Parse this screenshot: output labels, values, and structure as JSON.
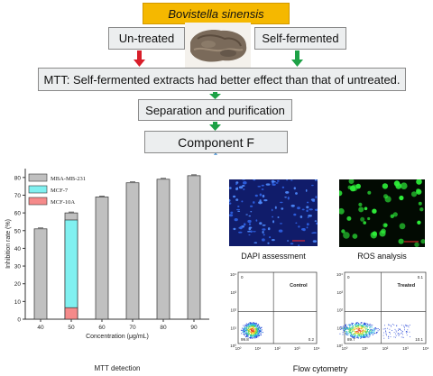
{
  "flow": {
    "title": "Bovistella sinensis",
    "untreated": "Un-treated",
    "self_fermented": "Self-fermented",
    "mtt": "MTT: Self-fermented extracts had better effect than that of untreated.",
    "separation": "Separation and purification",
    "component": "Component F"
  },
  "colors": {
    "title_bg": "#f5b800",
    "box_bg": "#eceeef",
    "red_arrow": "#d81e2a",
    "green_arrow": "#1da146",
    "bracket": "#5b9bd5",
    "bar_grey": "#c0c0c0",
    "bar_cyan": "#80f0f0",
    "bar_pink": "#f58a8a"
  },
  "chart_data": {
    "type": "bar",
    "categories": [
      "40",
      "50",
      "60",
      "70",
      "80",
      "90"
    ],
    "series": [
      {
        "name": "MBA-MB-231",
        "values": [
          51,
          60,
          69,
          77,
          79,
          81
        ]
      },
      {
        "name": "MCF-7",
        "values": [
          null,
          56,
          null,
          null,
          null,
          null
        ]
      },
      {
        "name": "MCF-10A",
        "values": [
          null,
          6.5,
          null,
          null,
          null,
          null
        ]
      }
    ],
    "yticks": [
      "0",
      "10",
      "20",
      "30",
      "40",
      "50",
      "60",
      "70",
      "80"
    ],
    "xlabel": "Concentration (μg/mL)",
    "ylabel": "Inhibition rate (%)",
    "ylim": [
      0,
      85
    ],
    "legend_position": "top-left",
    "caption": "MTT detection"
  },
  "panels": {
    "dapi": "DAPI assessment",
    "ros": "ROS analysis",
    "flow": "Flow cytometry"
  },
  "flow_plots": [
    {
      "label": "Control",
      "q1": "0",
      "q2": "",
      "q3": "99.8",
      "q4": "0.2"
    },
    {
      "label": "Treated",
      "q1": "0",
      "q2": "0.1",
      "q3": "89.7",
      "q4": "10.1"
    }
  ],
  "flow_axis": {
    "y": [
      "10⁴",
      "10³",
      "10²",
      "10¹",
      "10⁰"
    ],
    "x": [
      "10⁰",
      "10¹",
      "10²",
      "10³",
      "10⁴"
    ]
  }
}
